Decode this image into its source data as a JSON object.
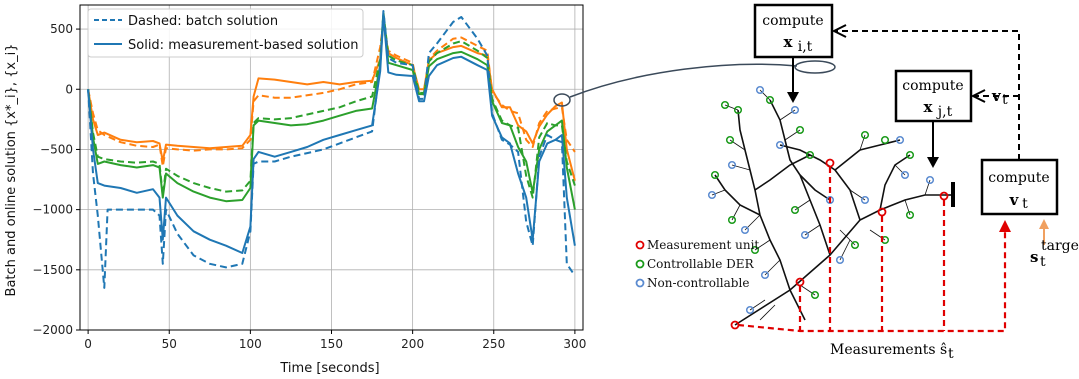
{
  "chart_data": {
    "type": "line",
    "xlabel": "Time [seconds]",
    "ylabel": "Batch and online solution {x*_i}, {x_i}",
    "xlim": [
      -5,
      305
    ],
    "ylim": [
      -2000,
      700
    ],
    "xticks": [
      0,
      50,
      100,
      150,
      200,
      250,
      300
    ],
    "yticks": [
      -2000,
      -1500,
      -1000,
      -500,
      0,
      500
    ],
    "grid": true,
    "legend_position": "top-left",
    "legend": [
      {
        "style": "dashed",
        "label": "Dashed: batch solution"
      },
      {
        "style": "solid",
        "label": "Solid: measurement-based solution"
      }
    ],
    "series": [
      {
        "color": "#ff7f0e",
        "style": "solid",
        "points": [
          [
            0,
            0
          ],
          [
            3,
            -250
          ],
          [
            6,
            -380
          ],
          [
            10,
            -360
          ],
          [
            20,
            -420
          ],
          [
            30,
            -440
          ],
          [
            40,
            -430
          ],
          [
            44,
            -450
          ],
          [
            46,
            -600
          ],
          [
            48,
            -460
          ],
          [
            55,
            -470
          ],
          [
            65,
            -480
          ],
          [
            75,
            -490
          ],
          [
            85,
            -480
          ],
          [
            95,
            -470
          ],
          [
            100,
            -380
          ],
          [
            102,
            -60
          ],
          [
            105,
            90
          ],
          [
            115,
            80
          ],
          [
            125,
            60
          ],
          [
            135,
            40
          ],
          [
            145,
            60
          ],
          [
            155,
            40
          ],
          [
            165,
            60
          ],
          [
            175,
            70
          ],
          [
            180,
            250
          ],
          [
            182,
            580
          ],
          [
            185,
            300
          ],
          [
            190,
            260
          ],
          [
            200,
            200
          ],
          [
            204,
            0
          ],
          [
            207,
            0
          ],
          [
            210,
            240
          ],
          [
            215,
            300
          ],
          [
            225,
            350
          ],
          [
            230,
            360
          ],
          [
            240,
            300
          ],
          [
            246,
            280
          ],
          [
            249,
            0
          ],
          [
            255,
            -150
          ],
          [
            260,
            -150
          ],
          [
            265,
            -300
          ],
          [
            270,
            -350
          ],
          [
            274,
            -450
          ],
          [
            278,
            -310
          ],
          [
            283,
            -210
          ],
          [
            288,
            -140
          ],
          [
            292,
            -110
          ],
          [
            295,
            -500
          ],
          [
            300,
            -760
          ]
        ]
      },
      {
        "color": "#ff7f0e",
        "style": "dashed",
        "points": [
          [
            0,
            0
          ],
          [
            3,
            -200
          ],
          [
            6,
            -340
          ],
          [
            10,
            -380
          ],
          [
            20,
            -440
          ],
          [
            30,
            -470
          ],
          [
            40,
            -480
          ],
          [
            44,
            -460
          ],
          [
            46,
            -640
          ],
          [
            48,
            -490
          ],
          [
            55,
            -500
          ],
          [
            65,
            -510
          ],
          [
            75,
            -500
          ],
          [
            85,
            -500
          ],
          [
            95,
            -490
          ],
          [
            100,
            -420
          ],
          [
            102,
            -100
          ],
          [
            105,
            -50
          ],
          [
            115,
            -70
          ],
          [
            125,
            -70
          ],
          [
            135,
            -50
          ],
          [
            145,
            -30
          ],
          [
            155,
            0
          ],
          [
            165,
            40
          ],
          [
            175,
            60
          ],
          [
            180,
            350
          ],
          [
            182,
            560
          ],
          [
            185,
            320
          ],
          [
            190,
            280
          ],
          [
            200,
            220
          ],
          [
            204,
            -40
          ],
          [
            207,
            -40
          ],
          [
            210,
            250
          ],
          [
            215,
            320
          ],
          [
            225,
            420
          ],
          [
            230,
            430
          ],
          [
            240,
            360
          ],
          [
            246,
            320
          ],
          [
            249,
            -20
          ],
          [
            255,
            -130
          ],
          [
            260,
            -180
          ],
          [
            265,
            -200
          ],
          [
            270,
            -420
          ],
          [
            274,
            -480
          ],
          [
            278,
            -280
          ],
          [
            283,
            -180
          ],
          [
            288,
            -160
          ],
          [
            292,
            -150
          ],
          [
            295,
            -420
          ],
          [
            300,
            -520
          ]
        ]
      },
      {
        "color": "#2ca02c",
        "style": "solid",
        "points": [
          [
            0,
            0
          ],
          [
            3,
            -400
          ],
          [
            6,
            -620
          ],
          [
            10,
            -600
          ],
          [
            20,
            -630
          ],
          [
            30,
            -650
          ],
          [
            40,
            -630
          ],
          [
            44,
            -650
          ],
          [
            46,
            -900
          ],
          [
            48,
            -700
          ],
          [
            55,
            -780
          ],
          [
            65,
            -850
          ],
          [
            75,
            -900
          ],
          [
            85,
            -930
          ],
          [
            95,
            -920
          ],
          [
            100,
            -820
          ],
          [
            102,
            -300
          ],
          [
            105,
            -260
          ],
          [
            115,
            -280
          ],
          [
            125,
            -300
          ],
          [
            135,
            -290
          ],
          [
            145,
            -260
          ],
          [
            155,
            -220
          ],
          [
            165,
            -180
          ],
          [
            175,
            -160
          ],
          [
            180,
            200
          ],
          [
            182,
            600
          ],
          [
            185,
            220
          ],
          [
            190,
            200
          ],
          [
            200,
            160
          ],
          [
            204,
            -40
          ],
          [
            207,
            -40
          ],
          [
            210,
            190
          ],
          [
            215,
            250
          ],
          [
            225,
            300
          ],
          [
            230,
            310
          ],
          [
            240,
            250
          ],
          [
            246,
            200
          ],
          [
            249,
            -100
          ],
          [
            255,
            -280
          ],
          [
            260,
            -300
          ],
          [
            265,
            -480
          ],
          [
            270,
            -600
          ],
          [
            274,
            -860
          ],
          [
            278,
            -500
          ],
          [
            283,
            -350
          ],
          [
            288,
            -300
          ],
          [
            292,
            -260
          ],
          [
            295,
            -650
          ],
          [
            300,
            -1000
          ]
        ]
      },
      {
        "color": "#2ca02c",
        "style": "dashed",
        "points": [
          [
            0,
            0
          ],
          [
            3,
            -360
          ],
          [
            6,
            -560
          ],
          [
            10,
            -580
          ],
          [
            20,
            -600
          ],
          [
            30,
            -610
          ],
          [
            40,
            -600
          ],
          [
            44,
            -620
          ],
          [
            46,
            -880
          ],
          [
            48,
            -660
          ],
          [
            55,
            -720
          ],
          [
            65,
            -780
          ],
          [
            75,
            -820
          ],
          [
            85,
            -850
          ],
          [
            95,
            -840
          ],
          [
            100,
            -760
          ],
          [
            102,
            -280
          ],
          [
            105,
            -240
          ],
          [
            115,
            -250
          ],
          [
            125,
            -240
          ],
          [
            135,
            -210
          ],
          [
            145,
            -180
          ],
          [
            155,
            -150
          ],
          [
            165,
            -100
          ],
          [
            175,
            -60
          ],
          [
            180,
            250
          ],
          [
            182,
            640
          ],
          [
            185,
            280
          ],
          [
            190,
            240
          ],
          [
            200,
            200
          ],
          [
            204,
            -30
          ],
          [
            207,
            -30
          ],
          [
            210,
            230
          ],
          [
            215,
            300
          ],
          [
            225,
            380
          ],
          [
            230,
            400
          ],
          [
            240,
            320
          ],
          [
            246,
            260
          ],
          [
            249,
            -80
          ],
          [
            255,
            -260
          ],
          [
            260,
            -300
          ],
          [
            265,
            -320
          ],
          [
            270,
            -720
          ],
          [
            274,
            -900
          ],
          [
            278,
            -400
          ],
          [
            283,
            -280
          ],
          [
            288,
            -300
          ],
          [
            292,
            -300
          ],
          [
            295,
            -600
          ],
          [
            300,
            -800
          ]
        ]
      },
      {
        "color": "#1f77b4",
        "style": "solid",
        "points": [
          [
            0,
            0
          ],
          [
            3,
            -500
          ],
          [
            6,
            -780
          ],
          [
            10,
            -800
          ],
          [
            20,
            -820
          ],
          [
            30,
            -860
          ],
          [
            40,
            -830
          ],
          [
            44,
            -900
          ],
          [
            46,
            -1250
          ],
          [
            48,
            -900
          ],
          [
            55,
            -1050
          ],
          [
            65,
            -1180
          ],
          [
            75,
            -1250
          ],
          [
            85,
            -1300
          ],
          [
            95,
            -1360
          ],
          [
            100,
            -1140
          ],
          [
            102,
            -580
          ],
          [
            105,
            -520
          ],
          [
            115,
            -560
          ],
          [
            125,
            -520
          ],
          [
            135,
            -480
          ],
          [
            145,
            -420
          ],
          [
            155,
            -380
          ],
          [
            165,
            -340
          ],
          [
            175,
            -300
          ],
          [
            180,
            150
          ],
          [
            182,
            620
          ],
          [
            185,
            140
          ],
          [
            190,
            120
          ],
          [
            200,
            110
          ],
          [
            204,
            -100
          ],
          [
            207,
            -100
          ],
          [
            210,
            110
          ],
          [
            215,
            200
          ],
          [
            225,
            260
          ],
          [
            230,
            270
          ],
          [
            240,
            200
          ],
          [
            246,
            160
          ],
          [
            249,
            -220
          ],
          [
            255,
            -400
          ],
          [
            260,
            -450
          ],
          [
            265,
            -700
          ],
          [
            270,
            -900
          ],
          [
            274,
            -1250
          ],
          [
            278,
            -600
          ],
          [
            283,
            -450
          ],
          [
            288,
            -420
          ],
          [
            292,
            -380
          ],
          [
            295,
            -900
          ],
          [
            300,
            -1300
          ]
        ]
      },
      {
        "color": "#1f77b4",
        "style": "dashed",
        "points": [
          [
            0,
            0
          ],
          [
            3,
            -700
          ],
          [
            6,
            -1050
          ],
          [
            10,
            -1650
          ],
          [
            12,
            -1000
          ],
          [
            20,
            -1000
          ],
          [
            30,
            -1000
          ],
          [
            40,
            -1000
          ],
          [
            44,
            -1050
          ],
          [
            46,
            -1450
          ],
          [
            48,
            -1000
          ],
          [
            55,
            -1200
          ],
          [
            65,
            -1380
          ],
          [
            75,
            -1450
          ],
          [
            85,
            -1480
          ],
          [
            95,
            -1450
          ],
          [
            100,
            -1180
          ],
          [
            102,
            -620
          ],
          [
            105,
            -600
          ],
          [
            115,
            -600
          ],
          [
            125,
            -560
          ],
          [
            135,
            -530
          ],
          [
            145,
            -500
          ],
          [
            155,
            -450
          ],
          [
            165,
            -400
          ],
          [
            175,
            -350
          ],
          [
            180,
            200
          ],
          [
            182,
            650
          ],
          [
            185,
            260
          ],
          [
            190,
            220
          ],
          [
            200,
            200
          ],
          [
            204,
            -80
          ],
          [
            207,
            -80
          ],
          [
            210,
            300
          ],
          [
            215,
            380
          ],
          [
            225,
            560
          ],
          [
            230,
            600
          ],
          [
            240,
            420
          ],
          [
            246,
            280
          ],
          [
            249,
            -200
          ],
          [
            255,
            -420
          ],
          [
            260,
            -460
          ],
          [
            265,
            -520
          ],
          [
            270,
            -1100
          ],
          [
            274,
            -1300
          ],
          [
            278,
            -560
          ],
          [
            283,
            -380
          ],
          [
            288,
            -420
          ],
          [
            292,
            -440
          ],
          [
            295,
            -1450
          ],
          [
            300,
            -1550
          ]
        ]
      }
    ]
  },
  "diagram": {
    "compute_label": "compute",
    "x_i_label": "x",
    "x_i_sub": "i,t",
    "x_j_label": "x",
    "x_j_sub": "j,t",
    "v_label": "v",
    "v_sub": "t",
    "v_arrow_label": "v",
    "v_arrow_sub": "t",
    "s_target_label": "s",
    "s_target_sub": "t",
    "s_target_sup": "target",
    "measurements_label": "Measurements ŝ",
    "measurements_sub": "t",
    "legend": [
      {
        "label": "Measurement unit",
        "color": "#e00000"
      },
      {
        "label": "Controllable DER",
        "color": "#1a9a1a"
      },
      {
        "label": "Non-controllable",
        "color": "#5b8bd0"
      }
    ]
  }
}
